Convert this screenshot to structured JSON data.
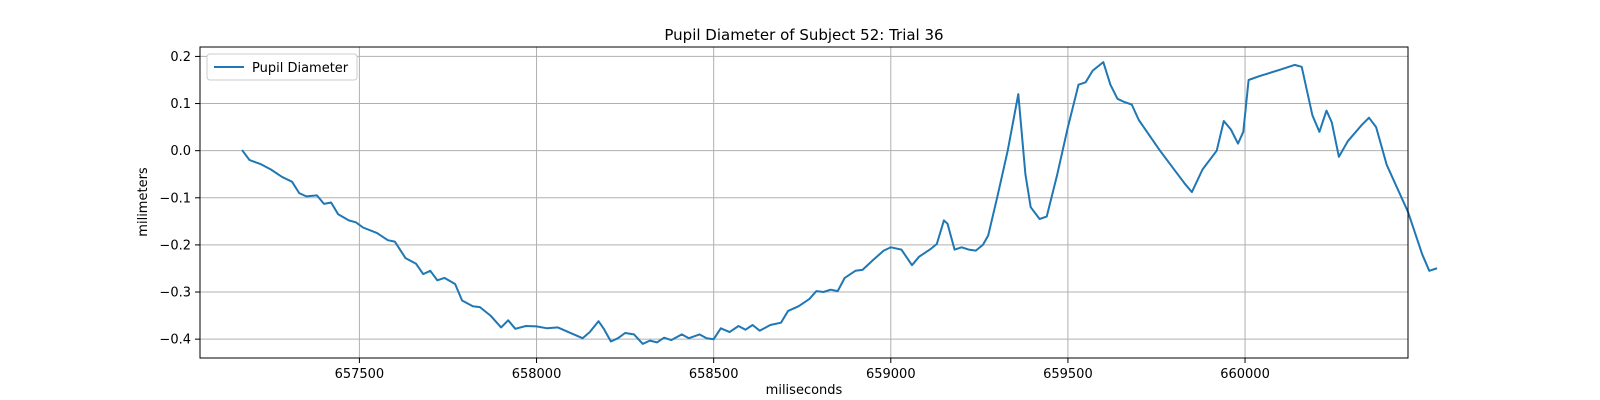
{
  "chart_data": {
    "type": "line",
    "title": "Pupil Diameter of Subject 52: Trial 36",
    "xlabel": "miliseconds",
    "ylabel": "milimeters",
    "xlim": [
      657050,
      660460
    ],
    "ylim": [
      -0.44,
      0.22
    ],
    "xticks": [
      657500,
      658000,
      658500,
      659000,
      659500,
      660000
    ],
    "xtick_labels": [
      "657500",
      "658000",
      "658500",
      "659000",
      "659500",
      "660000"
    ],
    "yticks": [
      -0.4,
      -0.3,
      -0.2,
      -0.1,
      0.0,
      0.1,
      0.2
    ],
    "ytick_labels": [
      "−0.4",
      "−0.3",
      "−0.2",
      "−0.1",
      "0.0",
      "0.1",
      "0.2"
    ],
    "grid": true,
    "legend_position": "top-left",
    "series": [
      {
        "name": "Pupil Diameter",
        "color": "#1f77b4",
        "points": [
          [
            657170,
            0.0
          ],
          [
            657190,
            -0.02
          ],
          [
            657220,
            -0.028
          ],
          [
            657250,
            -0.04
          ],
          [
            657280,
            -0.055
          ],
          [
            657310,
            -0.066
          ],
          [
            657330,
            -0.09
          ],
          [
            657350,
            -0.097
          ],
          [
            657380,
            -0.095
          ],
          [
            657400,
            -0.113
          ],
          [
            657420,
            -0.11
          ],
          [
            657440,
            -0.135
          ],
          [
            657470,
            -0.148
          ],
          [
            657490,
            -0.152
          ],
          [
            657510,
            -0.163
          ],
          [
            657550,
            -0.175
          ],
          [
            657580,
            -0.19
          ],
          [
            657600,
            -0.193
          ],
          [
            657630,
            -0.228
          ],
          [
            657660,
            -0.24
          ],
          [
            657680,
            -0.262
          ],
          [
            657700,
            -0.255
          ],
          [
            657720,
            -0.275
          ],
          [
            657740,
            -0.27
          ],
          [
            657770,
            -0.283
          ],
          [
            657790,
            -0.318
          ],
          [
            657820,
            -0.33
          ],
          [
            657840,
            -0.332
          ],
          [
            657870,
            -0.35
          ],
          [
            657900,
            -0.375
          ],
          [
            657920,
            -0.36
          ],
          [
            657940,
            -0.378
          ],
          [
            657970,
            -0.372
          ],
          [
            658000,
            -0.373
          ],
          [
            658030,
            -0.377
          ],
          [
            658060,
            -0.375
          ],
          [
            658090,
            -0.385
          ],
          [
            658130,
            -0.398
          ],
          [
            658150,
            -0.385
          ],
          [
            658175,
            -0.362
          ],
          [
            658190,
            -0.378
          ],
          [
            658210,
            -0.405
          ],
          [
            658230,
            -0.398
          ],
          [
            658250,
            -0.387
          ],
          [
            658275,
            -0.39
          ],
          [
            658300,
            -0.41
          ],
          [
            658320,
            -0.403
          ],
          [
            658340,
            -0.407
          ],
          [
            658360,
            -0.397
          ],
          [
            658380,
            -0.402
          ],
          [
            658410,
            -0.39
          ],
          [
            658430,
            -0.398
          ],
          [
            658460,
            -0.39
          ],
          [
            658480,
            -0.398
          ],
          [
            658500,
            -0.4
          ],
          [
            658520,
            -0.377
          ],
          [
            658545,
            -0.385
          ],
          [
            658570,
            -0.372
          ],
          [
            658590,
            -0.38
          ],
          [
            658610,
            -0.37
          ],
          [
            658630,
            -0.382
          ],
          [
            658660,
            -0.37
          ],
          [
            658690,
            -0.365
          ],
          [
            658710,
            -0.34
          ],
          [
            658740,
            -0.33
          ],
          [
            658770,
            -0.315
          ],
          [
            658790,
            -0.298
          ],
          [
            658810,
            -0.3
          ],
          [
            658830,
            -0.295
          ],
          [
            658850,
            -0.298
          ],
          [
            658870,
            -0.27
          ],
          [
            658900,
            -0.255
          ],
          [
            658920,
            -0.253
          ],
          [
            658950,
            -0.232
          ],
          [
            658980,
            -0.212
          ],
          [
            659000,
            -0.205
          ],
          [
            659030,
            -0.21
          ],
          [
            659060,
            -0.243
          ],
          [
            659080,
            -0.225
          ],
          [
            659110,
            -0.21
          ],
          [
            659130,
            -0.198
          ],
          [
            659150,
            -0.148
          ],
          [
            659160,
            -0.155
          ],
          [
            659180,
            -0.21
          ],
          [
            659200,
            -0.205
          ],
          [
            659220,
            -0.21
          ],
          [
            659240,
            -0.212
          ],
          [
            659260,
            -0.2
          ],
          [
            659275,
            -0.18
          ],
          [
            659300,
            -0.1
          ],
          [
            659330,
            0.0
          ],
          [
            659360,
            0.12
          ],
          [
            659380,
            -0.05
          ],
          [
            659395,
            -0.12
          ],
          [
            659420,
            -0.145
          ],
          [
            659440,
            -0.14
          ],
          [
            659470,
            -0.05
          ],
          [
            659500,
            0.05
          ],
          [
            659530,
            0.14
          ],
          [
            659550,
            0.145
          ],
          [
            659570,
            0.17
          ],
          [
            659600,
            0.188
          ],
          [
            659620,
            0.14
          ],
          [
            659640,
            0.11
          ],
          [
            659660,
            0.103
          ],
          [
            659680,
            0.098
          ],
          [
            659700,
            0.065
          ],
          [
            659760,
            0.0
          ],
          [
            659830,
            -0.07
          ],
          [
            659850,
            -0.088
          ],
          [
            659880,
            -0.04
          ],
          [
            659920,
            0.0
          ],
          [
            659940,
            0.063
          ],
          [
            659960,
            0.045
          ],
          [
            659980,
            0.015
          ],
          [
            659995,
            0.04
          ],
          [
            660010,
            0.15
          ],
          [
            660040,
            0.158
          ],
          [
            660070,
            0.165
          ],
          [
            660100,
            0.172
          ],
          [
            660140,
            0.182
          ],
          [
            660160,
            0.178
          ],
          [
            660190,
            0.075
          ],
          [
            660210,
            0.04
          ],
          [
            660230,
            0.085
          ],
          [
            660245,
            0.06
          ],
          [
            660265,
            -0.013
          ],
          [
            660290,
            0.02
          ],
          [
            660330,
            0.055
          ],
          [
            660350,
            0.07
          ],
          [
            660370,
            0.05
          ],
          [
            660400,
            -0.03
          ],
          [
            660460,
            -0.13
          ],
          [
            660500,
            -0.22
          ],
          [
            660520,
            -0.255
          ],
          [
            660540,
            -0.25
          ]
        ]
      }
    ]
  }
}
